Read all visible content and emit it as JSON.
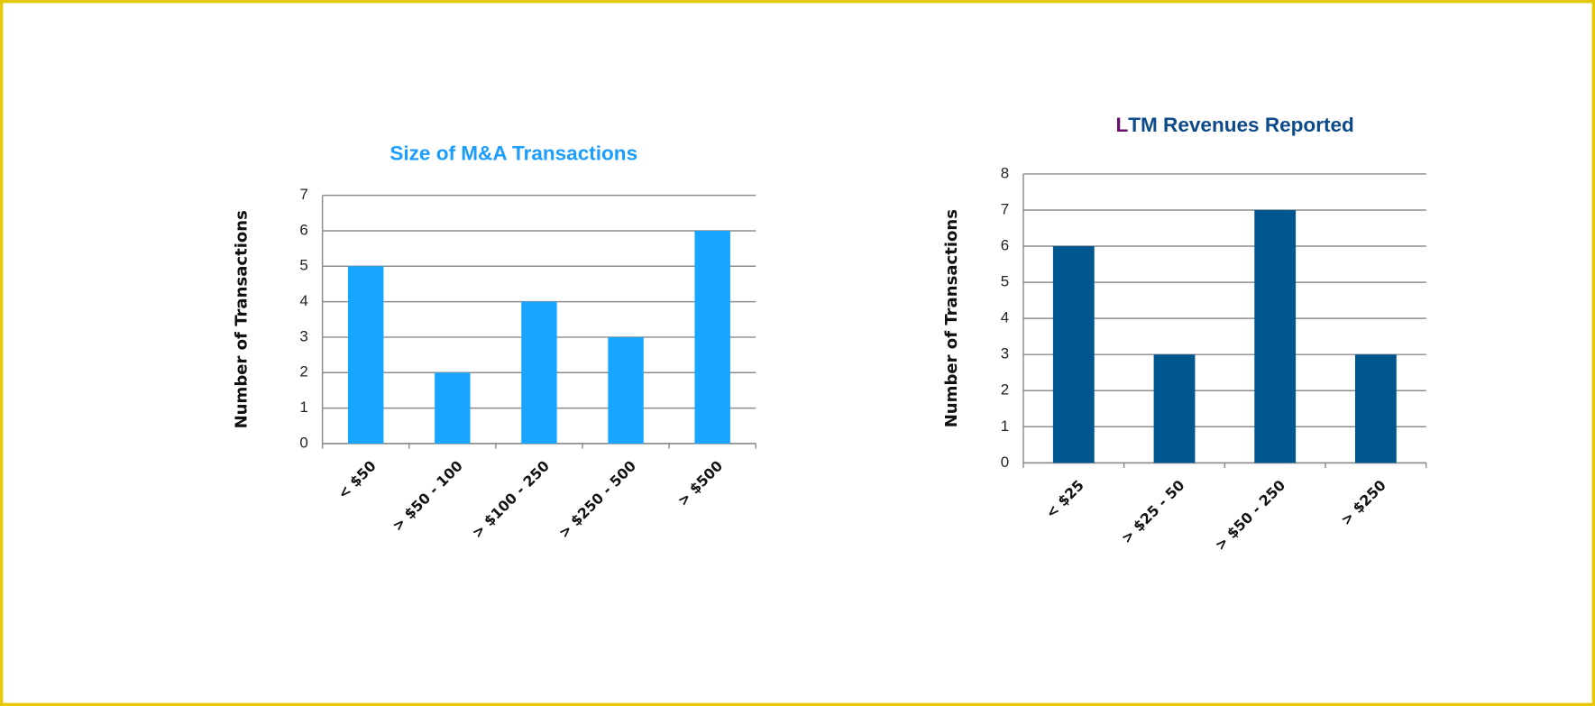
{
  "chart_data": [
    {
      "type": "bar",
      "title": "Size of M&A Transactions",
      "title_color": "#1a9dff",
      "y_label": "Number of Transactions",
      "categories": [
        "< $50",
        "> $50 - 100",
        "> $100 - 250",
        "> $250 - 500",
        "> $500"
      ],
      "values": [
        5,
        2,
        4,
        3,
        6
      ],
      "color": "#17a5ff",
      "ylim": [
        0,
        7
      ],
      "yticks": [
        0,
        1,
        2,
        3,
        4,
        5,
        6,
        7
      ],
      "grid": true
    },
    {
      "type": "bar",
      "title": "LTM Revenues Reported",
      "title_color": "#0d4a8a",
      "title_first_letter_color": "#6b0f6e",
      "y_label": "Number of Transactions",
      "categories": [
        "< $25",
        "> $25 - 50",
        "> $50 - 250",
        "> $250"
      ],
      "values": [
        6,
        3,
        7,
        3
      ],
      "color": "#00568f",
      "ylim": [
        0,
        8
      ],
      "yticks": [
        0,
        1,
        2,
        3,
        4,
        5,
        6,
        7,
        8
      ],
      "grid": true
    }
  ]
}
